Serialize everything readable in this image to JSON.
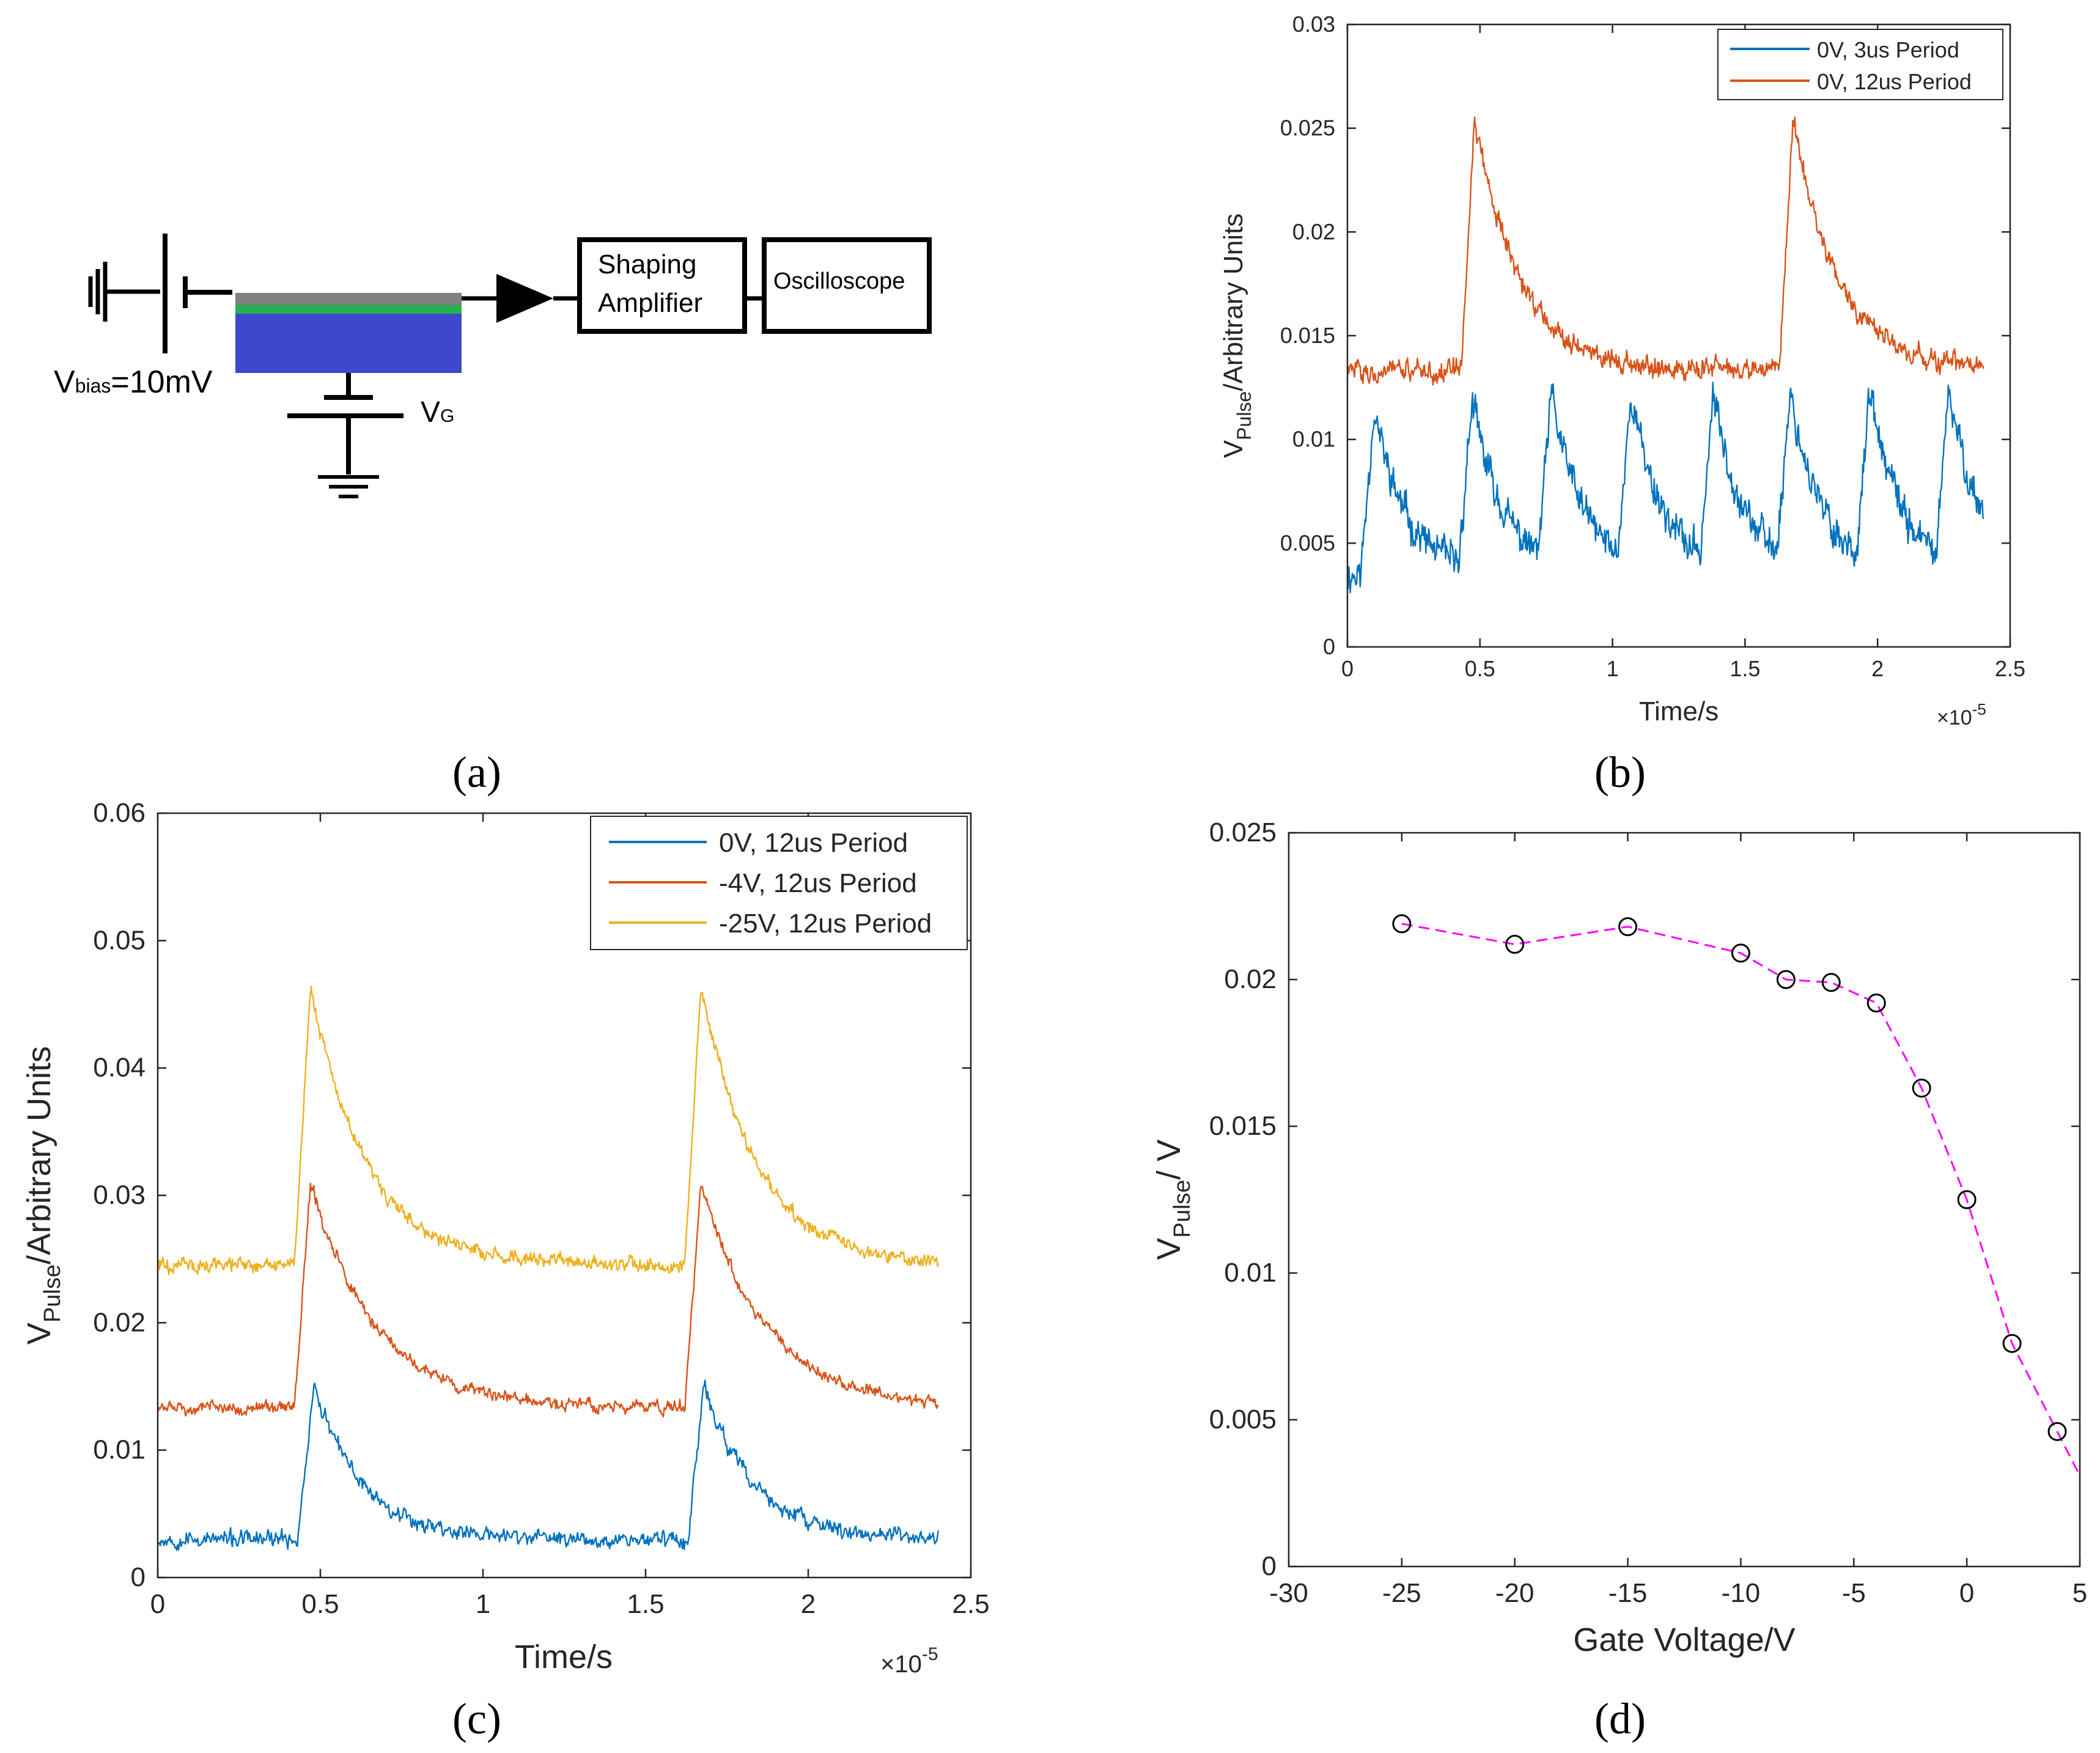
{
  "panel_labels": {
    "a": "(a)",
    "b": "(b)",
    "c": "(c)",
    "d": "(d)"
  },
  "circuit": {
    "bias_label": "V",
    "bias_sub": "bias",
    "bias_value": "=10mV",
    "gate_label": "V",
    "gate_sub": "G",
    "amp_line1": "Shaping",
    "amp_line2": "Amplifier",
    "scope": "Oscilloscope",
    "colors": {
      "electrode": "#808080",
      "layer": "#22b14c",
      "substrate": "#3f48cc"
    }
  },
  "chart_data": [
    {
      "id": "b",
      "type": "line",
      "title": "",
      "xlabel": "Time/s",
      "ylabel_main": "V",
      "ylabel_sub": "Pulse",
      "ylabel_rest": "/Arbitrary Units",
      "x_exponent": "×10",
      "x_exponent_power": "-5",
      "xlim": [
        0,
        2.5
      ],
      "ylim": [
        0,
        0.03
      ],
      "xticks": [
        "0",
        "0.5",
        "1",
        "1.5",
        "2",
        "2.5"
      ],
      "yticks": [
        "0",
        "0.005",
        "0.01",
        "0.015",
        "0.02",
        "0.025",
        "0.03"
      ],
      "legend_position": "top-right",
      "series": [
        {
          "name": "0V, 3us Period",
          "color": "#0072bd",
          "baseline": 0.0035,
          "peak": 0.0115,
          "period": 0.3,
          "onsets": [
            0.05,
            0.42,
            0.72,
            1.02,
            1.33,
            1.62,
            1.92,
            2.22
          ],
          "tau": 0.12,
          "noise": 0.0012,
          "x_end": 2.4
        },
        {
          "name": "0V, 12us Period",
          "color": "#d95319",
          "baseline": 0.0133,
          "peak": 0.0255,
          "period": 1.2,
          "onsets": [
            0.43,
            1.63
          ],
          "tau": 0.17,
          "noise": 0.0007,
          "x_end": 2.4
        }
      ]
    },
    {
      "id": "c",
      "type": "line",
      "title": "",
      "xlabel": "Time/s",
      "ylabel_main": "V",
      "ylabel_sub": "Pulse",
      "ylabel_rest": "/Arbitrary Units",
      "x_exponent": "×10",
      "x_exponent_power": "-5",
      "xlim": [
        0,
        2.5
      ],
      "ylim": [
        0,
        0.06
      ],
      "xticks": [
        "0",
        "0.5",
        "1",
        "1.5",
        "2",
        "2.5"
      ],
      "yticks": [
        "0",
        "0.01",
        "0.02",
        "0.03",
        "0.04",
        "0.05",
        "0.06"
      ],
      "legend_position": "top-right",
      "series": [
        {
          "name": "0V, 12us Period",
          "color": "#0072bd",
          "baseline": 0.003,
          "peak": 0.015,
          "onsets": [
            0.43,
            1.63
          ],
          "tau": 0.15,
          "noise": 0.0009,
          "x_end": 2.4
        },
        {
          "name": "-4V, 12us Period",
          "color": "#d95319",
          "baseline": 0.0133,
          "peak": 0.031,
          "onsets": [
            0.42,
            1.62
          ],
          "tau": 0.2,
          "noise": 0.0007,
          "x_end": 2.4
        },
        {
          "name": "-25V, 12us Period",
          "color": "#edb120",
          "baseline": 0.0245,
          "peak": 0.0465,
          "onsets": [
            0.42,
            1.62
          ],
          "tau": 0.17,
          "noise": 0.0008,
          "x_end": 2.4
        }
      ]
    },
    {
      "id": "d",
      "type": "scatter",
      "title": "",
      "xlabel": "Gate Voltage/V",
      "ylabel_main": "V",
      "ylabel_sub": "Pulse",
      "ylabel_rest": "/ V",
      "xlim": [
        -30,
        5
      ],
      "ylim": [
        0,
        0.025
      ],
      "xticks": [
        "-30",
        "-25",
        "-20",
        "-15",
        "-10",
        "-5",
        "0",
        "5"
      ],
      "yticks": [
        "0",
        "0.005",
        "0.01",
        "0.015",
        "0.02",
        "0.025"
      ],
      "line_color": "#ff00ff",
      "marker_color": "#000000",
      "x": [
        -25,
        -20,
        -15,
        -10,
        -8,
        -6,
        -4,
        -2,
        0,
        2,
        4
      ],
      "y": [
        0.0219,
        0.0212,
        0.0218,
        0.0209,
        0.02,
        0.0199,
        0.0192,
        0.0163,
        0.0125,
        0.0076,
        0.0046
      ],
      "line_extension": {
        "x": 5,
        "y": 0.0031
      }
    }
  ]
}
